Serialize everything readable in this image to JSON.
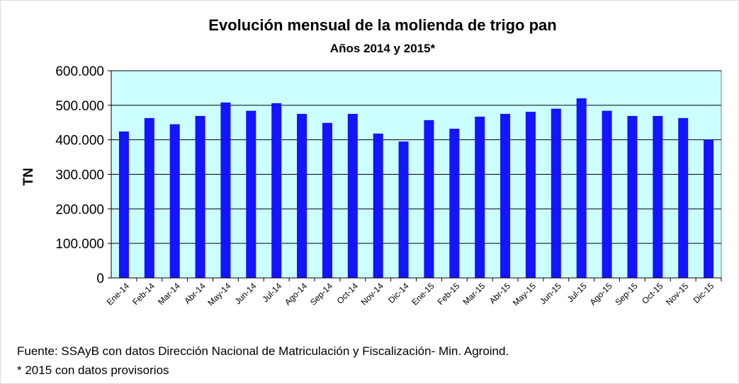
{
  "chart_data": {
    "type": "bar",
    "title": "Evolución mensual de la molienda de trigo pan",
    "subtitle": "Años 2014 y 2015*",
    "y_label": "TN",
    "categories": [
      "Ene-14",
      "Feb-14",
      "Mar-14",
      "Abr-14",
      "May-14",
      "Jun-14",
      "Jul-14",
      "Ago-14",
      "Sep-14",
      "Oct-14",
      "Nov-14",
      "Dic-14",
      "Ene-15",
      "Feb-15",
      "Mar-15",
      "Abr-15",
      "May-15",
      "Jun-15",
      "Jul-15",
      "Ago-15",
      "Sep-15",
      "Oct-15",
      "Nov-15",
      "Dic-15"
    ],
    "values": [
      424000,
      463000,
      445000,
      469000,
      508000,
      484000,
      506000,
      475000,
      449000,
      475000,
      418000,
      395000,
      457000,
      432000,
      467000,
      475000,
      481000,
      490000,
      520000,
      484000,
      469000,
      469000,
      463000,
      400000
    ],
    "color": "#1414ff",
    "plot_background": "#ccffff",
    "ylim": [
      0,
      600000
    ],
    "yticks": [
      0,
      {
        "value": 100000,
        "label": "100.000"
      },
      {
        "value": 200000,
        "label": "200.000"
      },
      {
        "value": 300000,
        "label": "300.000"
      },
      {
        "value": 400000,
        "label": "400.000"
      },
      {
        "value": 500000,
        "label": "500.000"
      },
      {
        "value": 600000,
        "label": "600.000"
      }
    ],
    "grid": true,
    "notes": [
      "Fuente: SSAyB con datos Dirección Nacional de Matriculación y Fiscalización- Min. Agroind.",
      "* 2015 con datos provisorios"
    ]
  }
}
